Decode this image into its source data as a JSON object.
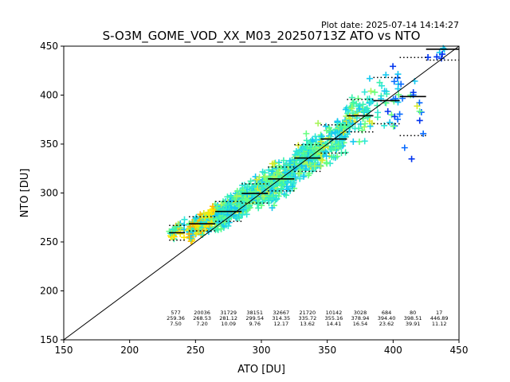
{
  "chart_data": {
    "type": "scatter",
    "title": "S-O3M_GOME_VOD_XX_M03_20250713Z ATO vs NTO",
    "plot_date": "Plot date: 2025-07-14 14:14:27",
    "xlabel": "ATO [DU]",
    "ylabel": "NTO [DU]",
    "xlim": [
      150,
      450
    ],
    "ylim": [
      150,
      450
    ],
    "xticks": [
      "150",
      "200",
      "250",
      "300",
      "350",
      "400",
      "450"
    ],
    "yticks": [
      "150",
      "200",
      "250",
      "300",
      "350",
      "400",
      "450"
    ],
    "grid": false,
    "reference_line": {
      "x": [
        150,
        450
      ],
      "y": [
        150,
        450
      ],
      "color": "#000000"
    },
    "marker": "+",
    "scatter_colors": [
      "#0033ee",
      "#0a6cff",
      "#16c8f0",
      "#2ee6d6",
      "#3af2b0",
      "#66ff80",
      "#a8f55a",
      "#d8ea2a",
      "#ffe800",
      "#ffb400"
    ],
    "bins": [
      {
        "count": "577",
        "mean": "259.36",
        "std": "7.50",
        "x_center": 235,
        "x_range": [
          230,
          242
        ]
      },
      {
        "count": "20036",
        "mean": "268.53",
        "std": "7.20",
        "x_center": 255,
        "x_range": [
          245,
          265
        ]
      },
      {
        "count": "31729",
        "mean": "281.12",
        "std": "10.09",
        "x_center": 275,
        "x_range": [
          265,
          285
        ]
      },
      {
        "count": "38151",
        "mean": "299.54",
        "std": "9.76",
        "x_center": 295,
        "x_range": [
          285,
          305
        ]
      },
      {
        "count": "32667",
        "mean": "314.35",
        "std": "12.17",
        "x_center": 315,
        "x_range": [
          305,
          325
        ]
      },
      {
        "count": "21720",
        "mean": "335.72",
        "std": "13.62",
        "x_center": 335,
        "x_range": [
          325,
          345
        ]
      },
      {
        "count": "10142",
        "mean": "355.16",
        "std": "14.41",
        "x_center": 355,
        "x_range": [
          345,
          365
        ]
      },
      {
        "count": "3028",
        "mean": "378.94",
        "std": "16.54",
        "x_center": 375,
        "x_range": [
          365,
          385
        ]
      },
      {
        "count": "684",
        "mean": "394.40",
        "std": "23.62",
        "x_center": 395,
        "x_range": [
          385,
          405
        ]
      },
      {
        "count": "80",
        "mean": "398.51",
        "std": "39.91",
        "x_center": 415,
        "x_range": [
          405,
          425
        ]
      },
      {
        "count": "17",
        "mean": "446.89",
        "std": "11.12",
        "x_center": 435,
        "x_range": [
          425,
          450
        ]
      }
    ]
  }
}
